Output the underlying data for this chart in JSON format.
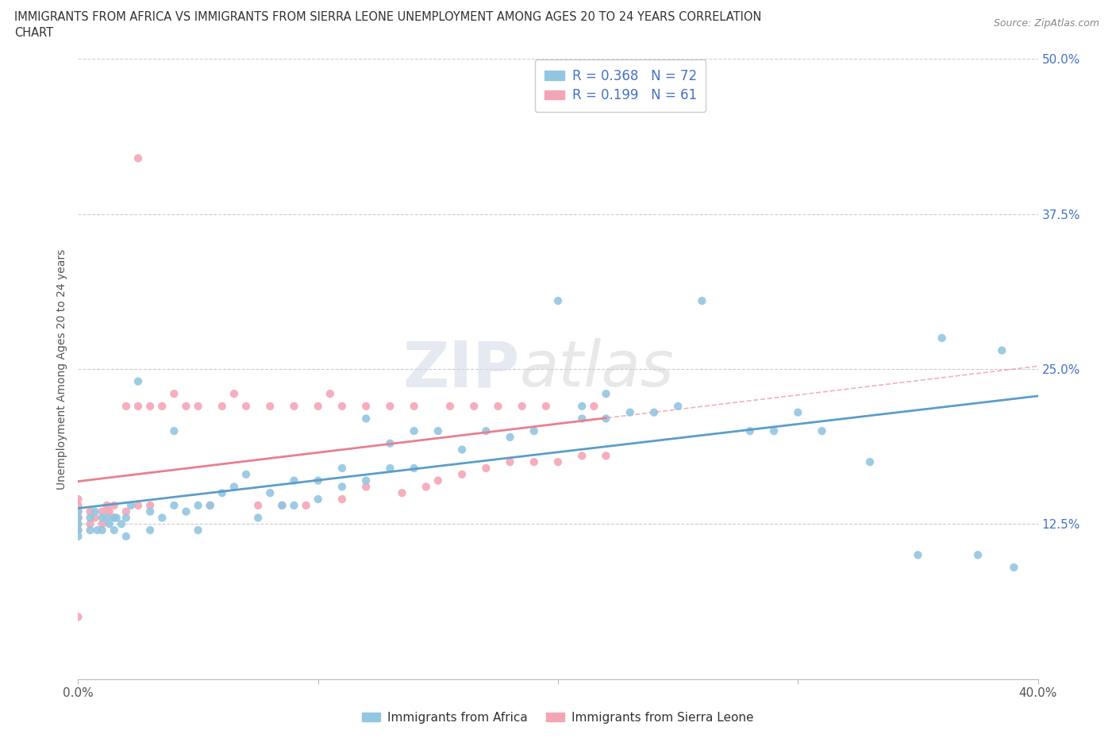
{
  "title_line1": "IMMIGRANTS FROM AFRICA VS IMMIGRANTS FROM SIERRA LEONE UNEMPLOYMENT AMONG AGES 20 TO 24 YEARS CORRELATION",
  "title_line2": "CHART",
  "source": "Source: ZipAtlas.com",
  "ylabel": "Unemployment Among Ages 20 to 24 years",
  "xlim": [
    0.0,
    0.4
  ],
  "ylim": [
    0.0,
    0.5
  ],
  "xticks": [
    0.0,
    0.1,
    0.2,
    0.3,
    0.4
  ],
  "xticklabels": [
    "0.0%",
    "",
    "",
    "",
    "40.0%"
  ],
  "ytick_positions": [
    0.0,
    0.125,
    0.25,
    0.375,
    0.5
  ],
  "ytick_labels": [
    "",
    "12.5%",
    "25.0%",
    "37.5%",
    "50.0%"
  ],
  "africa_color": "#93c6e0",
  "sierra_leone_color": "#f4a5b5",
  "africa_line_color": "#5a9ec9",
  "sierra_leone_line_color": "#e8808f",
  "africa_R": 0.368,
  "africa_N": 72,
  "sierra_leone_R": 0.199,
  "sierra_leone_N": 61,
  "legend_R_color": "#4472c4",
  "watermark_1": "ZIP",
  "watermark_2": "atlas",
  "africa_x": [
    0.0,
    0.0,
    0.0,
    0.0,
    0.0,
    0.005,
    0.005,
    0.007,
    0.008,
    0.01,
    0.01,
    0.012,
    0.013,
    0.015,
    0.015,
    0.016,
    0.018,
    0.02,
    0.02,
    0.022,
    0.025,
    0.03,
    0.03,
    0.035,
    0.04,
    0.04,
    0.045,
    0.05,
    0.05,
    0.055,
    0.06,
    0.065,
    0.07,
    0.075,
    0.08,
    0.085,
    0.09,
    0.09,
    0.1,
    0.1,
    0.11,
    0.11,
    0.12,
    0.12,
    0.13,
    0.13,
    0.14,
    0.14,
    0.15,
    0.16,
    0.17,
    0.18,
    0.19,
    0.2,
    0.21,
    0.21,
    0.22,
    0.22,
    0.23,
    0.24,
    0.25,
    0.26,
    0.28,
    0.29,
    0.3,
    0.31,
    0.33,
    0.35,
    0.36,
    0.375,
    0.385,
    0.39
  ],
  "africa_y": [
    0.13,
    0.135,
    0.125,
    0.12,
    0.115,
    0.13,
    0.12,
    0.135,
    0.12,
    0.13,
    0.12,
    0.13,
    0.125,
    0.13,
    0.12,
    0.13,
    0.125,
    0.13,
    0.115,
    0.14,
    0.24,
    0.135,
    0.12,
    0.13,
    0.14,
    0.2,
    0.135,
    0.14,
    0.12,
    0.14,
    0.15,
    0.155,
    0.165,
    0.13,
    0.15,
    0.14,
    0.16,
    0.14,
    0.16,
    0.145,
    0.17,
    0.155,
    0.16,
    0.21,
    0.17,
    0.19,
    0.17,
    0.2,
    0.2,
    0.185,
    0.2,
    0.195,
    0.2,
    0.305,
    0.21,
    0.22,
    0.21,
    0.23,
    0.215,
    0.215,
    0.22,
    0.305,
    0.2,
    0.2,
    0.215,
    0.2,
    0.175,
    0.1,
    0.275,
    0.1,
    0.265,
    0.09
  ],
  "sierra_x": [
    0.0,
    0.0,
    0.0,
    0.0,
    0.0,
    0.0,
    0.0,
    0.0,
    0.005,
    0.005,
    0.007,
    0.01,
    0.01,
    0.012,
    0.013,
    0.015,
    0.015,
    0.02,
    0.02,
    0.025,
    0.025,
    0.03,
    0.03,
    0.035,
    0.04,
    0.045,
    0.05,
    0.055,
    0.06,
    0.065,
    0.07,
    0.075,
    0.08,
    0.085,
    0.09,
    0.095,
    0.1,
    0.105,
    0.11,
    0.11,
    0.12,
    0.12,
    0.13,
    0.135,
    0.14,
    0.145,
    0.15,
    0.155,
    0.16,
    0.165,
    0.17,
    0.175,
    0.18,
    0.185,
    0.19,
    0.195,
    0.2,
    0.21,
    0.215,
    0.22,
    0.025
  ],
  "sierra_y": [
    0.13,
    0.135,
    0.14,
    0.145,
    0.13,
    0.125,
    0.12,
    0.05,
    0.135,
    0.125,
    0.13,
    0.135,
    0.125,
    0.14,
    0.135,
    0.14,
    0.13,
    0.22,
    0.135,
    0.22,
    0.14,
    0.22,
    0.14,
    0.22,
    0.23,
    0.22,
    0.22,
    0.14,
    0.22,
    0.23,
    0.22,
    0.14,
    0.22,
    0.14,
    0.22,
    0.14,
    0.22,
    0.23,
    0.22,
    0.145,
    0.22,
    0.155,
    0.22,
    0.15,
    0.22,
    0.155,
    0.16,
    0.22,
    0.165,
    0.22,
    0.17,
    0.22,
    0.175,
    0.22,
    0.175,
    0.22,
    0.175,
    0.18,
    0.22,
    0.18,
    0.42
  ]
}
